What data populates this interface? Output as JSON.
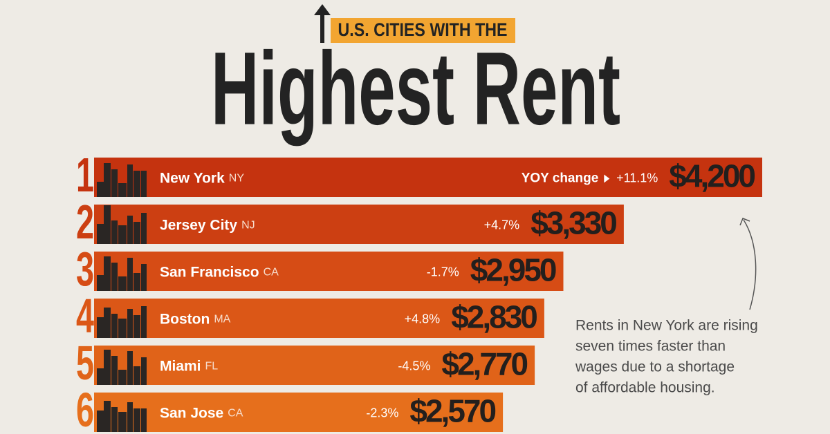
{
  "chart_data": {
    "type": "bar",
    "kicker": "U.S. CITIES WITH THE",
    "title": "Highest Rent",
    "ranks": [
      "1",
      "2",
      "3",
      "4",
      "5",
      "6"
    ],
    "categories": [
      "New York",
      "Jersey City",
      "San Francisco",
      "Boston",
      "Miami",
      "San Jose"
    ],
    "states": [
      "NY",
      "NJ",
      "CA",
      "MA",
      "FL",
      "CA"
    ],
    "yoy_label": "YOY change",
    "yoy_change": [
      "+11.1%",
      "+4.7%",
      "-1.7%",
      "+4.8%",
      "-4.5%",
      "-2.3%"
    ],
    "values": [
      4200,
      3330,
      2950,
      2830,
      2770,
      2570
    ],
    "value_labels": [
      "$4,200",
      "$3,330",
      "$2,950",
      "$2,830",
      "$2,770",
      "$2,570"
    ],
    "colors": [
      "#c5330f",
      "#cc3f12",
      "#d64c15",
      "#db5717",
      "#e06319",
      "#e66f1c"
    ],
    "annotation": [
      "Rents in New York are rising",
      "seven times faster than",
      "wages due to a shortage",
      "of affordable housing."
    ]
  }
}
